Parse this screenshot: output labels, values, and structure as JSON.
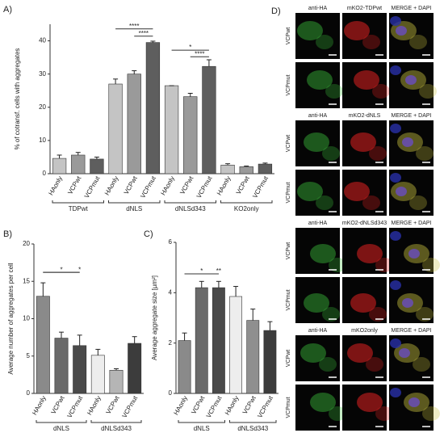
{
  "chart_data": [
    {
      "type": "bar",
      "label": "A)",
      "ylabel": "% of cotransf. cells with aggregates",
      "categories": [
        "HAonly",
        "VCPwt",
        "VCPmut",
        "HAonly",
        "VCPwt",
        "VCPmut",
        "HAonly",
        "VCPwt",
        "VCPmut",
        "HAonly",
        "VCPwt",
        "VCPmut"
      ],
      "groups": [
        "TDPwt",
        "dNLS",
        "dNLSd343",
        "KO2only"
      ],
      "values": [
        4.6,
        5.6,
        4.4,
        27,
        30,
        39.5,
        26.5,
        23.2,
        32.3,
        2.6,
        2.1,
        2.9
      ],
      "errors": [
        1,
        0.8,
        0.6,
        1.5,
        1,
        0.4,
        0,
        1,
        2,
        0.4,
        0.2,
        0.3
      ],
      "colors": [
        "#c4c4c4",
        "#9a9a9a",
        "#5e5e5e"
      ],
      "ylim": [
        0,
        45
      ],
      "yticks": [
        0,
        10,
        20,
        30,
        40
      ],
      "annotations": [
        "****",
        "****",
        "*",
        "****"
      ]
    },
    {
      "type": "bar",
      "label": "B)",
      "ylabel": "Average number of aggregates per cell",
      "categories": [
        "HAonly",
        "VCPwt",
        "VCPmut",
        "HAonly",
        "VCPwt",
        "VCPmut"
      ],
      "groups": [
        "dNLS",
        "dNLSd343"
      ],
      "values": [
        13,
        7.4,
        6.4,
        5.1,
        3.1,
        6.7
      ],
      "errors": [
        1.8,
        0.8,
        1.4,
        0.8,
        0.2,
        0.9
      ],
      "colors": [
        "#8a8a8a",
        "#6a6a6a",
        "#4a4a4a",
        "#ededed",
        "#b5b5b5",
        "#3c3c3c"
      ],
      "ylim": [
        0,
        20
      ],
      "yticks": [
        0,
        5,
        10,
        15,
        20
      ],
      "annotations": [
        "*",
        "*"
      ]
    },
    {
      "type": "bar",
      "label": "C)",
      "ylabel": "Average aggregate size [µm²]",
      "categories": [
        "HAonly",
        "VCPwt",
        "VCPmut",
        "HAonly",
        "VCPwt",
        "VCPmut"
      ],
      "groups": [
        "dNLS",
        "dNLSd343"
      ],
      "values": [
        2.1,
        4.2,
        4.2,
        3.85,
        2.9,
        2.5
      ],
      "errors": [
        0.3,
        0.25,
        0.25,
        0.4,
        0.45,
        0.35
      ],
      "colors": [
        "#8a8a8a",
        "#6a6a6a",
        "#4a4a4a",
        "#ededed",
        "#8f8f8f",
        "#3c3c3c"
      ],
      "ylim": [
        0,
        6
      ],
      "yticks": [
        0,
        2,
        4,
        6
      ],
      "annotations": [
        "*",
        "**"
      ]
    }
  ],
  "panel_d": {
    "label": "D)",
    "blocks": [
      {
        "headers": [
          "anti-HA",
          "mKO2-TDPwt",
          "MERGE + DAPI"
        ],
        "rows": [
          "VCPwt",
          "VCPmut"
        ]
      },
      {
        "headers": [
          "anti-HA",
          "mKO2-dNLS",
          "MERGE + DAPI"
        ],
        "rows": [
          "VCPwt",
          "VCPmut"
        ]
      },
      {
        "headers": [
          "anti-HA",
          "mKO2-dNLSd343",
          "MERGE + DAPI"
        ],
        "rows": [
          "VCPwt",
          "VCPmut"
        ]
      },
      {
        "headers": [
          "anti-HA",
          "mKO2only",
          "MERGE + DAPI"
        ],
        "rows": [
          "VCPwt",
          "VCPmut"
        ]
      }
    ]
  }
}
